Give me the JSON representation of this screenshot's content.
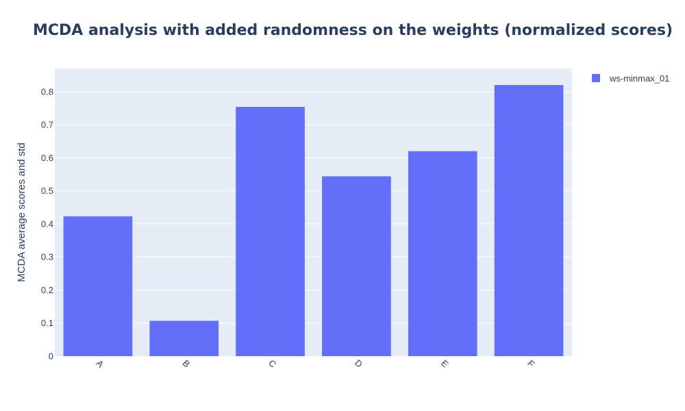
{
  "chart_data": {
    "type": "bar",
    "title": "MCDA analysis with added randomness on the weights (normalized scores)",
    "xlabel": "",
    "ylabel": "MCDA average scores and std",
    "categories": [
      "A",
      "B",
      "C",
      "D",
      "E",
      "F"
    ],
    "series": [
      {
        "name": "ws-minmax_01",
        "values": [
          0.423,
          0.107,
          0.754,
          0.544,
          0.62,
          0.82
        ]
      }
    ],
    "ylim": [
      0,
      0.87
    ],
    "yticks": [
      "0",
      "0.1",
      "0.2",
      "0.3",
      "0.4",
      "0.5",
      "0.6",
      "0.7",
      "0.8"
    ],
    "grid": true,
    "legend_position": "top-right",
    "colors": {
      "bar": "#636efa",
      "plot_bg": "#e5ecf6",
      "text": "#2a3f5f"
    }
  }
}
